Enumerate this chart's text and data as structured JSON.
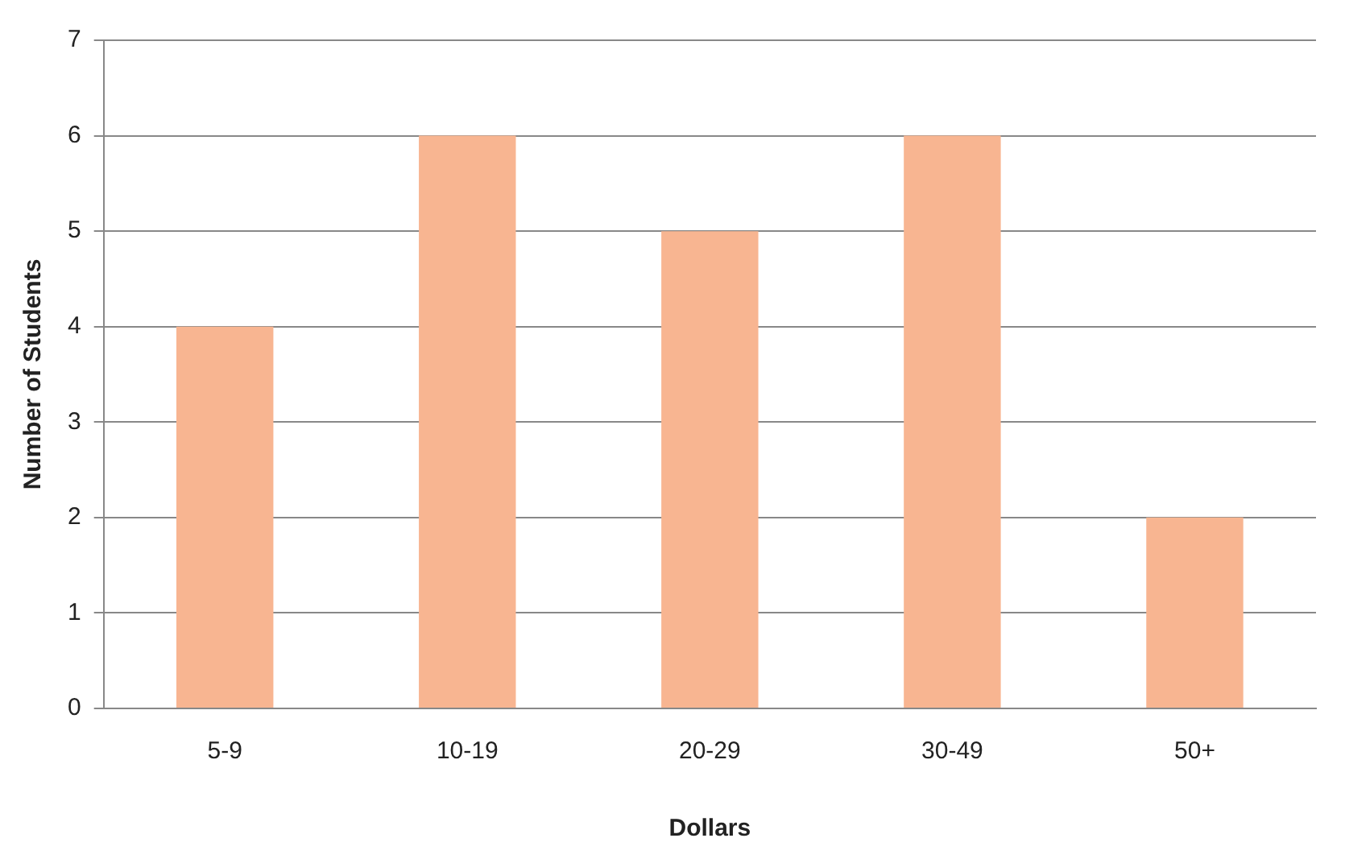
{
  "chart_data": {
    "type": "bar",
    "xlabel": "Dollars",
    "ylabel": "Number of Students",
    "categories": [
      "5-9",
      "10-19",
      "20-29",
      "30-49",
      "50+"
    ],
    "values": [
      4,
      6,
      5,
      6,
      2
    ],
    "color": "#f8b591",
    "ylim": [
      0,
      7
    ],
    "yticks": [
      0,
      1,
      2,
      3,
      4,
      5,
      6,
      7
    ],
    "grid": "y",
    "legend": false
  }
}
